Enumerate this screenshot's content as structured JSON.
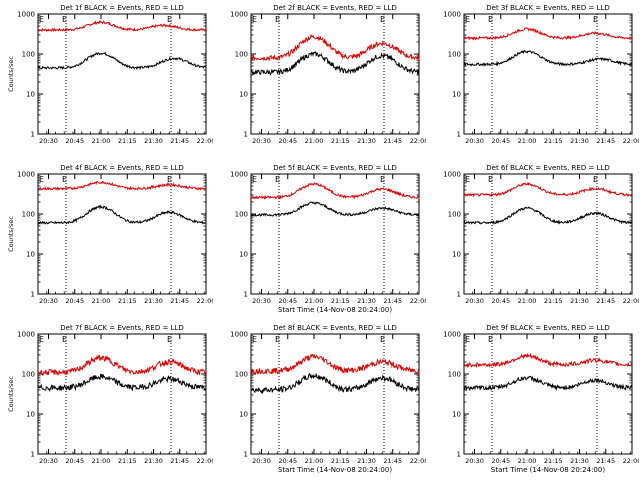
{
  "chart_data": [
    {
      "type": "line",
      "title": "Det 1f BLACK = Events, RED = LLD",
      "ylabel": "Counts/sec",
      "xlabel": "",
      "yscale": "log",
      "ylim": [
        1,
        1000
      ],
      "x_ticks": [
        "20:30",
        "20:45",
        "21:00",
        "21:15",
        "21:30",
        "21:45",
        "22:00"
      ],
      "marker_label": "E",
      "markers": [
        "20:40",
        "21:40"
      ],
      "series": [
        {
          "color": "#000000",
          "base": 45,
          "peaks": [
            [
              21.0,
              105
            ],
            [
              21.7,
              78
            ]
          ]
        },
        {
          "color": "#e00000",
          "base": 400,
          "peaks": [
            [
              21.0,
              620
            ],
            [
              21.6,
              520
            ]
          ]
        }
      ],
      "noise": 0.03
    },
    {
      "type": "line",
      "title": "Det 2f BLACK = Events, RED = LLD",
      "ylabel": "",
      "xlabel": "",
      "yscale": "log",
      "ylim": [
        1,
        1000
      ],
      "x_ticks": [
        "20:30",
        "20:45",
        "21:00",
        "21:15",
        "21:30",
        "21:45",
        "22:00"
      ],
      "marker_label": "E",
      "markers": [
        "20:40",
        "21:40"
      ],
      "series": [
        {
          "color": "#000000",
          "base": 35,
          "peaks": [
            [
              21.0,
              100
            ],
            [
              21.65,
              90
            ]
          ]
        },
        {
          "color": "#e00000",
          "base": 80,
          "peaks": [
            [
              21.0,
              270
            ],
            [
              21.65,
              185
            ]
          ]
        }
      ],
      "noise": 0.06
    },
    {
      "type": "line",
      "title": "Det 3f BLACK = Events, RED = LLD",
      "ylabel": "",
      "xlabel": "",
      "yscale": "log",
      "ylim": [
        1,
        1000
      ],
      "x_ticks": [
        "20:30",
        "20:45",
        "21:00",
        "21:15",
        "21:30",
        "21:45",
        "22:00"
      ],
      "marker_label": "E",
      "markers": [
        "20:40",
        "21:40"
      ],
      "series": [
        {
          "color": "#000000",
          "base": 55,
          "peaks": [
            [
              21.0,
              115
            ],
            [
              21.7,
              75
            ]
          ]
        },
        {
          "color": "#e00000",
          "base": 250,
          "peaks": [
            [
              21.0,
              420
            ],
            [
              21.65,
              330
            ]
          ]
        }
      ],
      "noise": 0.03
    },
    {
      "type": "line",
      "title": "Det 4f BLACK = Events, RED = LLD",
      "ylabel": "Counts/sec",
      "xlabel": "",
      "yscale": "log",
      "ylim": [
        1,
        1000
      ],
      "x_ticks": [
        "20:30",
        "20:45",
        "21:00",
        "21:15",
        "21:30",
        "21:45",
        "22:00"
      ],
      "marker_label": "E",
      "markers": [
        "20:40",
        "21:40"
      ],
      "series": [
        {
          "color": "#000000",
          "base": 60,
          "peaks": [
            [
              21.0,
              150
            ],
            [
              21.65,
              110
            ]
          ]
        },
        {
          "color": "#e00000",
          "base": 430,
          "peaks": [
            [
              21.0,
              620
            ],
            [
              21.65,
              540
            ]
          ]
        }
      ],
      "noise": 0.03
    },
    {
      "type": "line",
      "title": "Det 5f BLACK = Events, RED = LLD",
      "ylabel": "",
      "xlabel": "Start Time (14-Nov-08 20:24:00)",
      "yscale": "log",
      "ylim": [
        1,
        1000
      ],
      "x_ticks": [
        "20:30",
        "20:45",
        "21:00",
        "21:15",
        "21:30",
        "21:45",
        "22:00"
      ],
      "marker_label": "E",
      "markers": [
        "20:40",
        "21:40"
      ],
      "series": [
        {
          "color": "#000000",
          "base": 95,
          "peaks": [
            [
              21.0,
              190
            ],
            [
              21.65,
              140
            ]
          ]
        },
        {
          "color": "#e00000",
          "base": 260,
          "peaks": [
            [
              21.0,
              560
            ],
            [
              21.65,
              420
            ]
          ]
        }
      ],
      "noise": 0.03
    },
    {
      "type": "line",
      "title": "Det 6f BLACK = Events, RED = LLD",
      "ylabel": "",
      "xlabel": "",
      "yscale": "log",
      "ylim": [
        1,
        1000
      ],
      "x_ticks": [
        "20:30",
        "20:45",
        "21:00",
        "21:15",
        "21:30",
        "21:45",
        "22:00"
      ],
      "marker_label": "E",
      "markers": [
        "20:40",
        "21:40"
      ],
      "series": [
        {
          "color": "#000000",
          "base": 60,
          "peaks": [
            [
              21.0,
              140
            ],
            [
              21.65,
              105
            ]
          ]
        },
        {
          "color": "#e00000",
          "base": 300,
          "peaks": [
            [
              21.0,
              560
            ],
            [
              21.65,
              430
            ]
          ]
        }
      ],
      "noise": 0.03
    },
    {
      "type": "line",
      "title": "Det 7f BLACK = Events, RED = LLD",
      "ylabel": "Counts/sec",
      "xlabel": "",
      "yscale": "log",
      "ylim": [
        1,
        1000
      ],
      "x_ticks": [
        "20:30",
        "20:45",
        "21:00",
        "21:15",
        "21:30",
        "21:45",
        "22:00"
      ],
      "marker_label": "E",
      "markers": [
        "20:40",
        "21:40"
      ],
      "series": [
        {
          "color": "#000000",
          "base": 45,
          "peaks": [
            [
              21.0,
              85
            ],
            [
              21.65,
              75
            ]
          ]
        },
        {
          "color": "#e00000",
          "base": 110,
          "peaks": [
            [
              21.0,
              250
            ],
            [
              21.65,
              200
            ]
          ]
        }
      ],
      "noise": 0.07
    },
    {
      "type": "line",
      "title": "Det 8f BLACK = Events, RED = LLD",
      "ylabel": "",
      "xlabel": "Start Time (14-Nov-08 20:24:00)",
      "yscale": "log",
      "ylim": [
        1,
        1000
      ],
      "x_ticks": [
        "20:30",
        "20:45",
        "21:00",
        "21:15",
        "21:30",
        "21:45",
        "22:00"
      ],
      "marker_label": "E",
      "markers": [
        "20:40",
        "21:40"
      ],
      "series": [
        {
          "color": "#000000",
          "base": 40,
          "peaks": [
            [
              21.0,
              90
            ],
            [
              21.65,
              80
            ]
          ]
        },
        {
          "color": "#e00000",
          "base": 120,
          "peaks": [
            [
              21.0,
              270
            ],
            [
              21.65,
              200
            ]
          ]
        }
      ],
      "noise": 0.07
    },
    {
      "type": "line",
      "title": "Det 9f BLACK = Events, RED = LLD",
      "ylabel": "",
      "xlabel": "Start Time (14-Nov-08 20:24:00)",
      "yscale": "log",
      "ylim": [
        1,
        1000
      ],
      "x_ticks": [
        "20:30",
        "20:45",
        "21:00",
        "21:15",
        "21:30",
        "21:45",
        "22:00"
      ],
      "marker_label": "E",
      "markers": [
        "20:40",
        "21:40"
      ],
      "series": [
        {
          "color": "#000000",
          "base": 45,
          "peaks": [
            [
              21.0,
              80
            ],
            [
              21.65,
              70
            ]
          ]
        },
        {
          "color": "#e00000",
          "base": 170,
          "peaks": [
            [
              21.0,
              280
            ],
            [
              21.65,
              220
            ]
          ]
        }
      ],
      "noise": 0.05
    }
  ]
}
